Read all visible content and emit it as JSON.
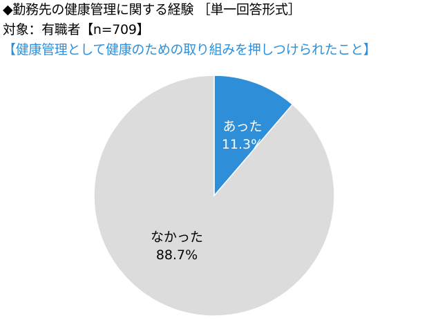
{
  "header": {
    "title": "◆勤務先の健康管理に関する経験 ［単一回答形式］",
    "subtitle": "対象：有職者【n=709】",
    "question": "【健康管理として健康のための取り組みを押しつけられたこと】"
  },
  "chart_data": {
    "type": "pie",
    "title": "",
    "slices": [
      {
        "label": "あった",
        "value": 11.3,
        "value_label": "11.3%",
        "color": "#2E8FD8",
        "text_color": "#ffffff"
      },
      {
        "label": "なかった",
        "value": 88.7,
        "value_label": "88.7%",
        "color": "#DCDCDC",
        "text_color": "#000000"
      }
    ],
    "start_angle": "12 o'clock",
    "direction": "clockwise",
    "legend": "none"
  }
}
